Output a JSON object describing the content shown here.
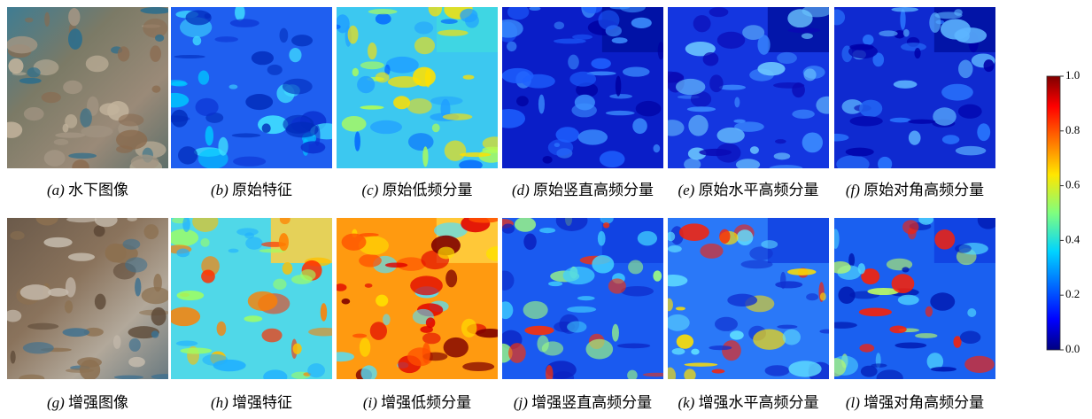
{
  "panels": [
    {
      "label": "(a)",
      "caption": "水下图像"
    },
    {
      "label": "(b)",
      "caption": "原始特征"
    },
    {
      "label": "(c)",
      "caption": "原始低频分量"
    },
    {
      "label": "(d)",
      "caption": "原始竖直高频分量"
    },
    {
      "label": "(e)",
      "caption": "原始水平高频分量"
    },
    {
      "label": "(f)",
      "caption": "原始对角高频分量"
    },
    {
      "label": "(g)",
      "caption": "增强图像"
    },
    {
      "label": "(h)",
      "caption": "增强特征"
    },
    {
      "label": "(i)",
      "caption": "增强低频分量"
    },
    {
      "label": "(j)",
      "caption": "增强竖直高频分量"
    },
    {
      "label": "(k)",
      "caption": "增强水平高频分量"
    },
    {
      "label": "(l)",
      "caption": "增强对角高频分量"
    }
  ],
  "colorbar": {
    "ticks": [
      {
        "value": 0,
        "label": "0.0"
      },
      {
        "value": 0.2,
        "label": "0.2"
      },
      {
        "value": 0.4,
        "label": "0.4"
      },
      {
        "value": 0.6,
        "label": "0.6"
      },
      {
        "value": 0.8,
        "label": "0.8"
      },
      {
        "value": 1,
        "label": "1.0"
      }
    ]
  }
}
